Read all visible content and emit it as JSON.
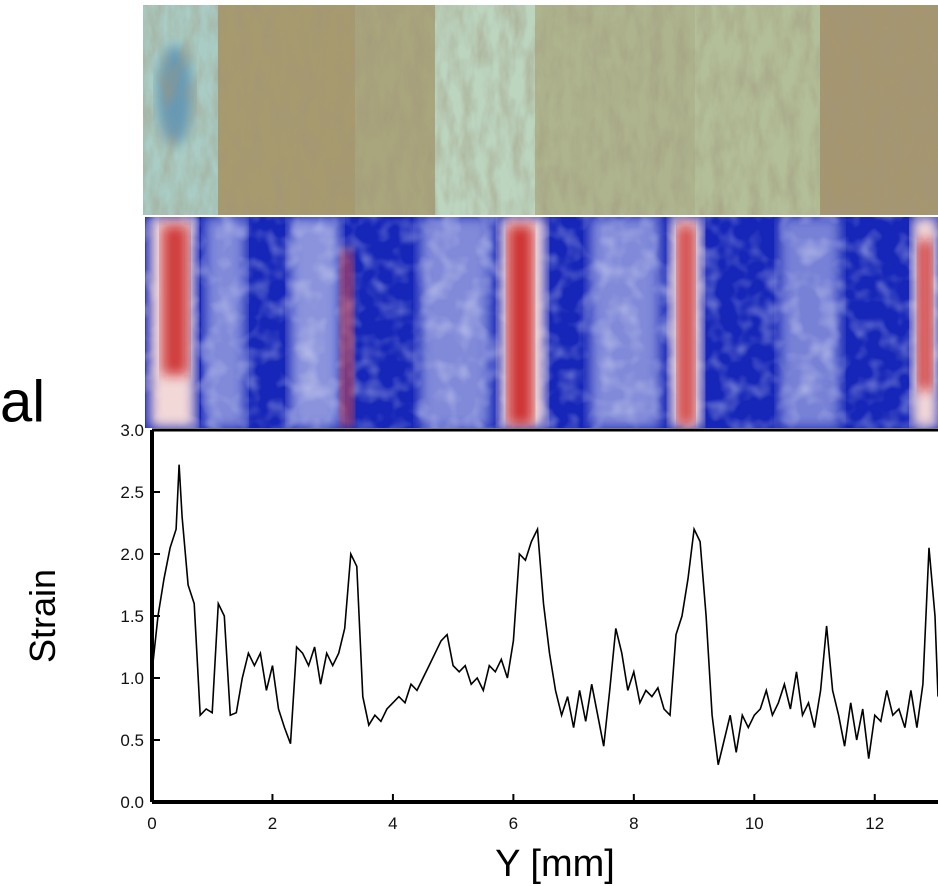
{
  "side_text": "al",
  "chart_data": {
    "type": "line",
    "x_label": "Y [mm]",
    "y_label": "Strain",
    "color": "#000000",
    "x": [
      0,
      0.1,
      0.2,
      0.3,
      0.4,
      0.45,
      0.5,
      0.6,
      0.7,
      0.8,
      0.9,
      1.0,
      1.1,
      1.2,
      1.3,
      1.4,
      1.5,
      1.6,
      1.7,
      1.8,
      1.9,
      2.0,
      2.1,
      2.2,
      2.3,
      2.4,
      2.5,
      2.6,
      2.7,
      2.8,
      2.9,
      3.0,
      3.1,
      3.2,
      3.3,
      3.4,
      3.5,
      3.6,
      3.7,
      3.8,
      3.9,
      4.0,
      4.1,
      4.2,
      4.3,
      4.4,
      4.5,
      4.6,
      4.7,
      4.8,
      4.9,
      5.0,
      5.1,
      5.2,
      5.3,
      5.4,
      5.5,
      5.6,
      5.7,
      5.8,
      5.9,
      6.0,
      6.1,
      6.2,
      6.3,
      6.4,
      6.5,
      6.6,
      6.7,
      6.8,
      6.9,
      7.0,
      7.1,
      7.2,
      7.3,
      7.4,
      7.5,
      7.6,
      7.7,
      7.8,
      7.9,
      8.0,
      8.1,
      8.2,
      8.3,
      8.4,
      8.5,
      8.6,
      8.7,
      8.8,
      8.9,
      9.0,
      9.1,
      9.2,
      9.3,
      9.4,
      9.5,
      9.6,
      9.7,
      9.8,
      9.9,
      10.0,
      10.1,
      10.2,
      10.3,
      10.4,
      10.5,
      10.6,
      10.7,
      10.8,
      10.9,
      11.0,
      11.1,
      11.2,
      11.3,
      11.4,
      11.5,
      11.6,
      11.7,
      11.8,
      11.9,
      12.0,
      12.1,
      12.2,
      12.3,
      12.4,
      12.5,
      12.6,
      12.7,
      12.8,
      12.9,
      13.0,
      13.05
    ],
    "values": [
      1.05,
      1.5,
      1.8,
      2.05,
      2.2,
      2.72,
      2.3,
      1.75,
      1.6,
      0.7,
      0.75,
      0.72,
      1.6,
      1.5,
      0.7,
      0.72,
      1.0,
      1.2,
      1.1,
      1.2,
      0.9,
      1.1,
      0.75,
      0.6,
      0.47,
      1.25,
      1.2,
      1.1,
      1.25,
      0.95,
      1.2,
      1.1,
      1.2,
      1.4,
      2.0,
      1.9,
      0.85,
      0.62,
      0.7,
      0.65,
      0.75,
      0.8,
      0.85,
      0.8,
      0.95,
      0.9,
      1.0,
      1.1,
      1.2,
      1.3,
      1.35,
      1.1,
      1.05,
      1.1,
      0.95,
      1.0,
      0.9,
      1.1,
      1.05,
      1.15,
      1.0,
      1.3,
      2.0,
      1.95,
      2.1,
      2.2,
      1.6,
      1.2,
      0.9,
      0.7,
      0.85,
      0.6,
      0.9,
      0.65,
      0.95,
      0.7,
      0.45,
      0.9,
      1.4,
      1.2,
      0.9,
      1.05,
      0.8,
      0.9,
      0.85,
      0.92,
      0.75,
      0.7,
      1.35,
      1.5,
      1.8,
      2.2,
      2.1,
      1.5,
      0.7,
      0.3,
      0.5,
      0.7,
      0.4,
      0.7,
      0.6,
      0.7,
      0.75,
      0.9,
      0.7,
      0.8,
      0.95,
      0.75,
      1.05,
      0.7,
      0.8,
      0.6,
      0.9,
      1.42,
      0.9,
      0.7,
      0.45,
      0.8,
      0.5,
      0.75,
      0.35,
      0.7,
      0.65,
      0.9,
      0.7,
      0.75,
      0.6,
      0.9,
      0.6,
      0.95,
      2.05,
      1.5,
      0.85
    ],
    "xlim": [
      0,
      13.05
    ],
    "ylim": [
      0,
      3
    ],
    "xticks": [
      0,
      2,
      4,
      6,
      8,
      10,
      12
    ],
    "yticks": [
      {
        "value": 0,
        "label": "0.0"
      },
      {
        "value": 0.5,
        "label": "0.5"
      },
      {
        "value": 1,
        "label": "1.0"
      },
      {
        "value": 1.5,
        "label": "1.5"
      },
      {
        "value": 2,
        "label": "2.0"
      },
      {
        "value": 2.5,
        "label": "2.5"
      },
      {
        "value": 3,
        "label": "3.0"
      }
    ]
  }
}
